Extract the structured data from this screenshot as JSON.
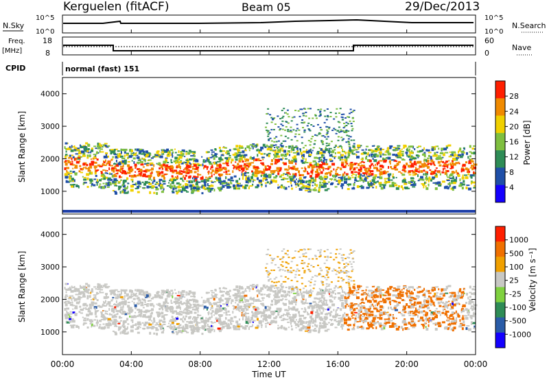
{
  "header": {
    "station": "Kerguelen (fitACF)",
    "beam": "Beam 05",
    "date": "29/Dec/2013"
  },
  "top_panels": {
    "nsky_label": "N.Sky",
    "nsky_ticks": [
      "10^5",
      "10^0"
    ],
    "nsearch_label": "N.Search",
    "nsearch_ticks": [
      "10^5",
      "10^0"
    ],
    "freq_label": "Freq.",
    "freq_unit": "[MHz]",
    "freq_ticks": [
      "18",
      "8"
    ],
    "nave_label": "Nave",
    "nave_ticks": [
      "60",
      "0"
    ],
    "cpid_label": "CPID",
    "cpid_text": "normal (fast) 151"
  },
  "chart_data": [
    {
      "type": "heatmap",
      "name": "power",
      "ylabel": "Slant Range [km]",
      "ylim": [
        300,
        4500
      ],
      "yticks": [
        "4000",
        "3000",
        "2000",
        "1000"
      ],
      "colorbar_label": "Power [dB]",
      "colorbar_ticks": [
        "28",
        "24",
        "20",
        "16",
        "12",
        "8",
        "4"
      ],
      "colors": [
        "#1400ff",
        "#1f4fa8",
        "#2e8c56",
        "#7fbf3f",
        "#f0d000",
        "#f08a00",
        "#ff1f00"
      ]
    },
    {
      "type": "heatmap",
      "name": "velocity",
      "ylabel": "Slant Range [km]",
      "ylim": [
        300,
        4500
      ],
      "yticks": [
        "4000",
        "3000",
        "2000",
        "1000"
      ],
      "colorbar_label": "Velocity [m s⁻¹]",
      "colorbar_ticks": [
        "1000",
        "500",
        "100",
        "25",
        "-25",
        "-100",
        "-500",
        "-1000"
      ],
      "colors": [
        "#1400ff",
        "#2a5ca8",
        "#2e8c56",
        "#7fd13f",
        "#c8c8c4",
        "#f0a000",
        "#f07000",
        "#ff1f00"
      ]
    }
  ],
  "x_axis": {
    "label": "Time UT",
    "ticks": [
      "00:00",
      "04:00",
      "08:00",
      "12:00",
      "16:00",
      "20:00",
      "00:00"
    ]
  },
  "colors": {
    "ground_band": "#1f3fa8",
    "grey_scatter": "#c8c8c4"
  }
}
